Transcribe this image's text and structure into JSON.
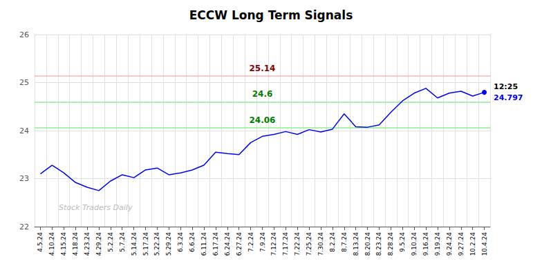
{
  "chart_data": {
    "type": "line",
    "title": "ECCW Long Term Signals",
    "categories": [
      "4.5.24",
      "4.10.24",
      "4.15.24",
      "4.18.24",
      "4.23.24",
      "4.29.24",
      "5.2.24",
      "5.7.24",
      "5.14.24",
      "5.17.24",
      "5.22.24",
      "5.29.24",
      "6.3.24",
      "6.6.24",
      "6.11.24",
      "6.17.24",
      "6.24.24",
      "6.27.24",
      "7.2.24",
      "7.9.24",
      "7.12.24",
      "7.17.24",
      "7.22.24",
      "7.25.24",
      "7.30.24",
      "8.2.24",
      "8.7.24",
      "8.13.24",
      "8.20.24",
      "8.23.24",
      "8.28.24",
      "9.5.24",
      "9.10.24",
      "9.16.24",
      "9.19.24",
      "9.24.24",
      "9.27.24",
      "10.2.24",
      "10.4.24"
    ],
    "values": [
      23.1,
      23.28,
      23.12,
      22.92,
      22.82,
      22.75,
      22.95,
      23.08,
      23.02,
      23.18,
      23.22,
      23.08,
      23.12,
      23.18,
      23.28,
      23.55,
      23.52,
      23.5,
      23.75,
      23.88,
      23.92,
      23.98,
      23.92,
      24.02,
      23.97,
      24.03,
      24.35,
      24.08,
      24.07,
      24.12,
      24.38,
      24.62,
      24.78,
      24.88,
      24.68,
      24.78,
      24.82,
      24.72,
      24.797
    ],
    "color": "blue",
    "ylim": [
      22,
      26
    ],
    "yticks": [
      22,
      23,
      24,
      25,
      26
    ],
    "grid": true,
    "annotations": [
      {
        "text": "25.14",
        "y": 25.14,
        "color": "darkred",
        "line_color": "#ffb3b3"
      },
      {
        "text": "24.6",
        "y": 24.6,
        "color": "green",
        "line_color": "#90ee90"
      },
      {
        "text": "24.06",
        "y": 24.06,
        "color": "green",
        "line_color": "#90ee90"
      }
    ],
    "last_point_labels": [
      {
        "text": "12:25",
        "color": "black"
      },
      {
        "text": "24.797",
        "color": "blue"
      }
    ],
    "watermark": "Stock Traders Daily"
  }
}
